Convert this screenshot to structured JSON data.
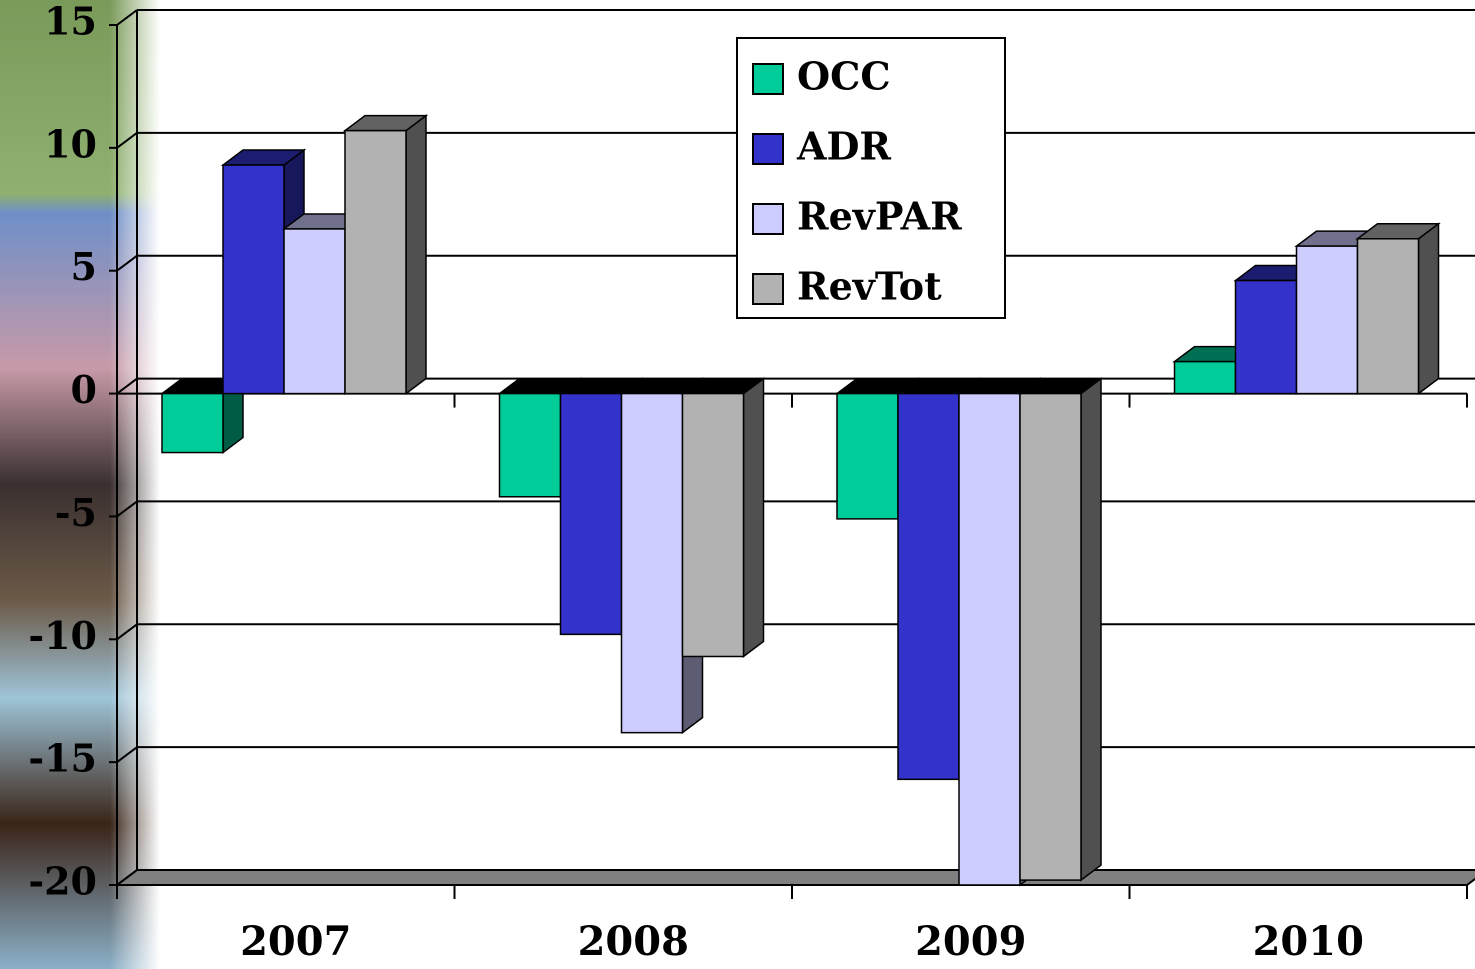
{
  "chart_data": {
    "type": "bar",
    "categories": [
      "2007",
      "2008",
      "2009",
      "2010"
    ],
    "series": [
      {
        "name": "OCC",
        "color": "#00cc99",
        "values": [
          -2.4,
          -4.2,
          -5.1,
          1.3
        ]
      },
      {
        "name": "ADR",
        "color": "#3333cc",
        "values": [
          9.3,
          -9.8,
          -15.7,
          4.6
        ]
      },
      {
        "name": "RevPAR",
        "color": "#ccccff",
        "values": [
          6.7,
          -13.8,
          -20,
          6.0
        ]
      },
      {
        "name": "RevTot",
        "color": "#b2b2b2",
        "values": [
          10.7,
          -10.7,
          -19.8,
          6.3
        ]
      }
    ],
    "ylim": [
      -20,
      15
    ],
    "yticks": [
      -20,
      -15,
      -10,
      -5,
      0,
      5,
      10,
      15
    ],
    "grid": true
  }
}
